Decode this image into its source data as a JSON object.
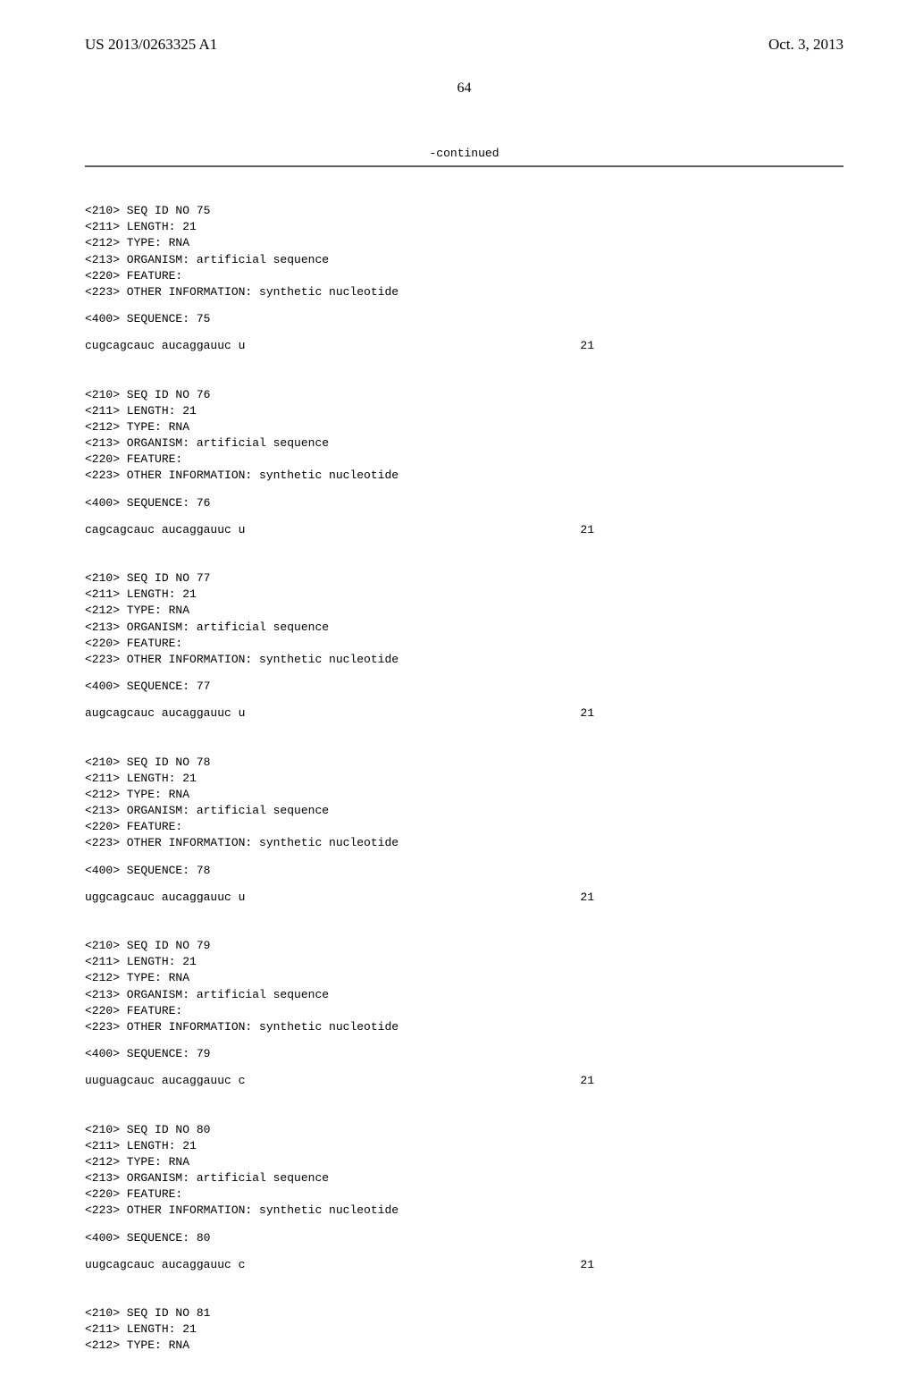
{
  "header": {
    "publication_number": "US 2013/0263325 A1",
    "publication_date": "Oct. 3, 2013"
  },
  "page_number": "64",
  "continued_label": "-continued",
  "sequences": [
    {
      "id": "75",
      "meta": [
        "<210> SEQ ID NO 75",
        "<211> LENGTH: 21",
        "<212> TYPE: RNA",
        "<213> ORGANISM: artificial sequence",
        "<220> FEATURE:",
        "<223> OTHER INFORMATION: synthetic nucleotide"
      ],
      "sequence_label": "<400> SEQUENCE: 75",
      "sequence": "cugcagcauc aucaggauuc u",
      "length": "21"
    },
    {
      "id": "76",
      "meta": [
        "<210> SEQ ID NO 76",
        "<211> LENGTH: 21",
        "<212> TYPE: RNA",
        "<213> ORGANISM: artificial sequence",
        "<220> FEATURE:",
        "<223> OTHER INFORMATION: synthetic nucleotide"
      ],
      "sequence_label": "<400> SEQUENCE: 76",
      "sequence": "cagcagcauc aucaggauuc u",
      "length": "21"
    },
    {
      "id": "77",
      "meta": [
        "<210> SEQ ID NO 77",
        "<211> LENGTH: 21",
        "<212> TYPE: RNA",
        "<213> ORGANISM: artificial sequence",
        "<220> FEATURE:",
        "<223> OTHER INFORMATION: synthetic nucleotide"
      ],
      "sequence_label": "<400> SEQUENCE: 77",
      "sequence": "augcagcauc aucaggauuc u",
      "length": "21"
    },
    {
      "id": "78",
      "meta": [
        "<210> SEQ ID NO 78",
        "<211> LENGTH: 21",
        "<212> TYPE: RNA",
        "<213> ORGANISM: artificial sequence",
        "<220> FEATURE:",
        "<223> OTHER INFORMATION: synthetic nucleotide"
      ],
      "sequence_label": "<400> SEQUENCE: 78",
      "sequence": "uggcagcauc aucaggauuc u",
      "length": "21"
    },
    {
      "id": "79",
      "meta": [
        "<210> SEQ ID NO 79",
        "<211> LENGTH: 21",
        "<212> TYPE: RNA",
        "<213> ORGANISM: artificial sequence",
        "<220> FEATURE:",
        "<223> OTHER INFORMATION: synthetic nucleotide"
      ],
      "sequence_label": "<400> SEQUENCE: 79",
      "sequence": "uuguagcauc aucaggauuc c",
      "length": "21"
    },
    {
      "id": "80",
      "meta": [
        "<210> SEQ ID NO 80",
        "<211> LENGTH: 21",
        "<212> TYPE: RNA",
        "<213> ORGANISM: artificial sequence",
        "<220> FEATURE:",
        "<223> OTHER INFORMATION: synthetic nucleotide"
      ],
      "sequence_label": "<400> SEQUENCE: 80",
      "sequence": "uugcagcauc aucaggauuc c",
      "length": "21"
    }
  ],
  "trailing_meta": [
    "<210> SEQ ID NO 81",
    "<211> LENGTH: 21",
    "<212> TYPE: RNA"
  ],
  "colors": {
    "background": "#ffffff",
    "text": "#000000",
    "rule": "#606060"
  },
  "fonts": {
    "serif": "Times New Roman",
    "mono": "Courier New",
    "header_size_pt": 13,
    "body_size_pt": 10
  }
}
